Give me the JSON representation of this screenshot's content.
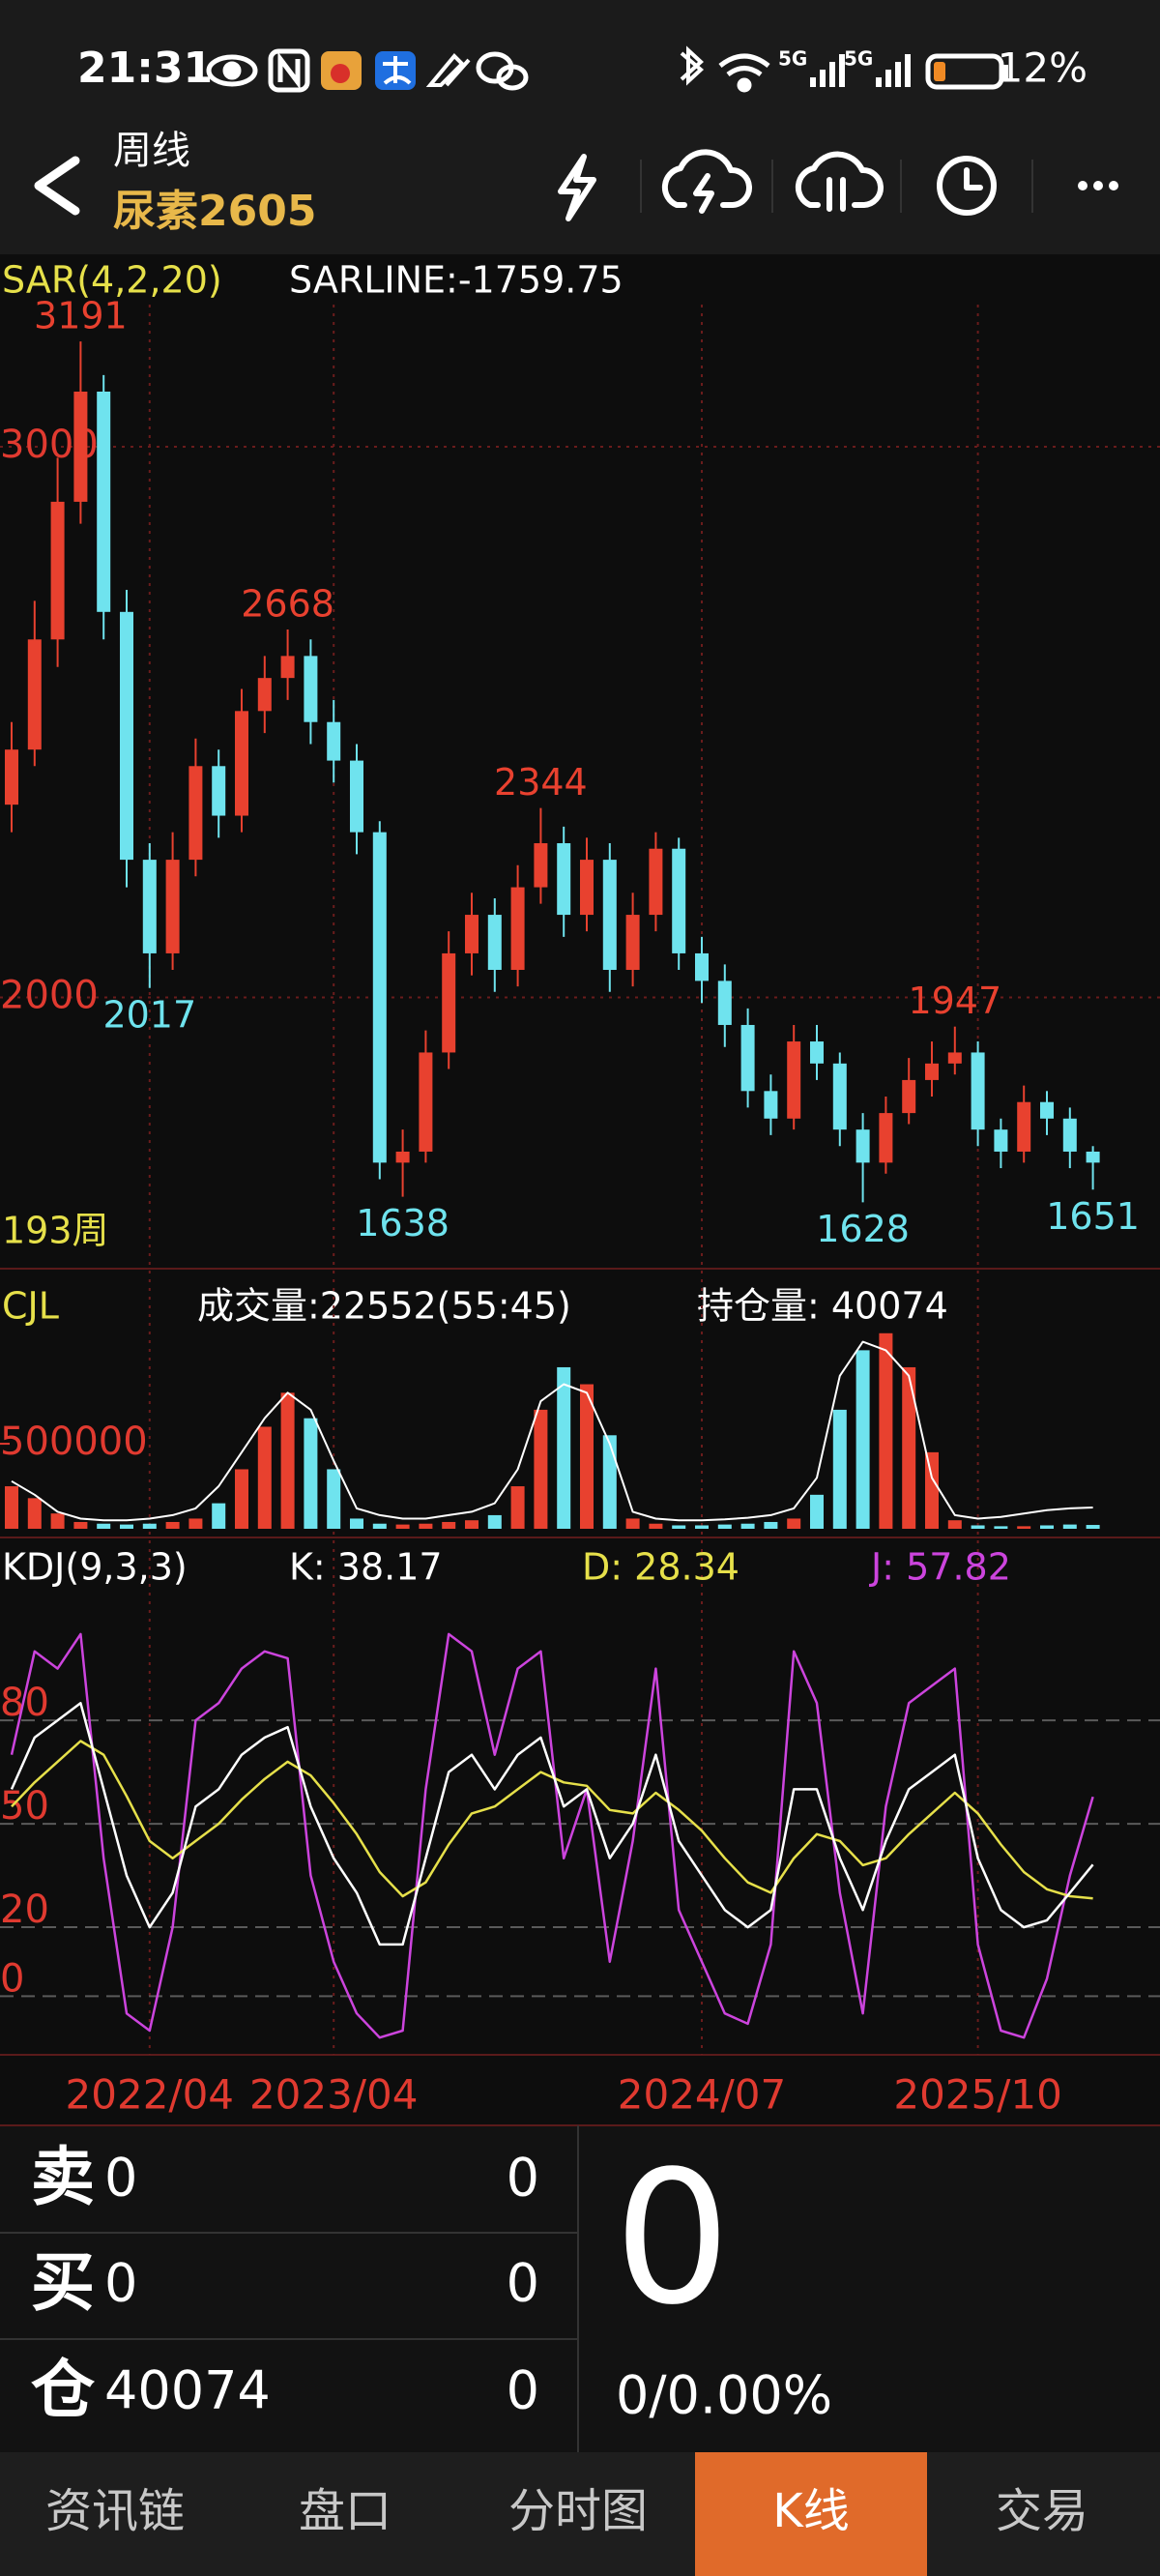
{
  "status_bar": {
    "time": "21:31",
    "network": [
      "5G",
      "5G"
    ],
    "battery": "12%"
  },
  "header": {
    "period": "周线",
    "symbol": "尿素2605"
  },
  "chart_data": [
    {
      "type": "candlestick",
      "title": "SAR(4,2,20)",
      "subtitle": "SARLINE:-1759.75",
      "bar_count_label": "193周",
      "categories": [
        null,
        null,
        null,
        null,
        null,
        null,
        "2022/04",
        null,
        null,
        null,
        null,
        null,
        null,
        null,
        "2023/04",
        null,
        null,
        null,
        null,
        null,
        null,
        null,
        null,
        null,
        null,
        null,
        null,
        null,
        null,
        null,
        "2024/07",
        null,
        null,
        null,
        null,
        null,
        null,
        null,
        null,
        null,
        null,
        null,
        "2025/10",
        null,
        null,
        null,
        null,
        null
      ],
      "open": [
        2350,
        2450,
        2650,
        2900,
        3100,
        2700,
        2250,
        2080,
        2250,
        2420,
        2330,
        2520,
        2580,
        2620,
        2500,
        2430,
        2300,
        1700,
        1720,
        1900,
        2080,
        2150,
        2050,
        2200,
        2280,
        2150,
        2250,
        2050,
        2150,
        2270,
        2080,
        2030,
        1950,
        1830,
        1780,
        1920,
        1880,
        1760,
        1700,
        1790,
        1850,
        1880,
        1900,
        1760,
        1720,
        1810,
        1780,
        1720
      ],
      "high": [
        2500,
        2720,
        2980,
        3191,
        3130,
        2740,
        2280,
        2300,
        2470,
        2450,
        2560,
        2620,
        2668,
        2650,
        2540,
        2460,
        2320,
        1760,
        1940,
        2120,
        2190,
        2180,
        2240,
        2344,
        2310,
        2290,
        2280,
        2190,
        2300,
        2290,
        2110,
        2060,
        1980,
        1860,
        1950,
        1950,
        1900,
        1790,
        1820,
        1890,
        1920,
        1947,
        1920,
        1780,
        1840,
        1830,
        1800,
        1730
      ],
      "low": [
        2300,
        2420,
        2600,
        2860,
        2650,
        2200,
        2017,
        2050,
        2220,
        2290,
        2300,
        2480,
        2540,
        2460,
        2390,
        2260,
        1670,
        1638,
        1700,
        1870,
        2040,
        2010,
        2020,
        2170,
        2110,
        2120,
        2010,
        2020,
        2120,
        2050,
        1990,
        1910,
        1800,
        1750,
        1760,
        1850,
        1730,
        1628,
        1680,
        1770,
        1820,
        1860,
        1730,
        1690,
        1700,
        1750,
        1690,
        1651
      ],
      "close": [
        2450,
        2650,
        2900,
        3100,
        2700,
        2250,
        2080,
        2250,
        2420,
        2330,
        2520,
        2580,
        2620,
        2500,
        2430,
        2300,
        1700,
        1720,
        1900,
        2080,
        2150,
        2050,
        2200,
        2280,
        2150,
        2250,
        2050,
        2150,
        2270,
        2080,
        2030,
        1950,
        1830,
        1780,
        1920,
        1880,
        1760,
        1700,
        1790,
        1850,
        1880,
        1900,
        1760,
        1720,
        1810,
        1780,
        1720,
        1700
      ],
      "up_color": "#e8412f",
      "down_color": "#6fe3ee",
      "annotations": {
        "highs": [
          3191,
          2668,
          2344,
          1947
        ],
        "lows": [
          2017,
          1638,
          1628,
          1651
        ]
      },
      "ylim": [
        1511,
        3258
      ],
      "yticks": [
        2000,
        3000
      ],
      "grid": true
    },
    {
      "type": "bar",
      "title": "CJL",
      "volume_label": "成交量:22552(55:45)",
      "open_interest_label": "持仓量: 40074",
      "values": [
        250000,
        180000,
        90000,
        40000,
        30000,
        25000,
        30000,
        40000,
        60000,
        150000,
        350000,
        600000,
        800000,
        650000,
        350000,
        60000,
        30000,
        25000,
        30000,
        40000,
        50000,
        80000,
        250000,
        700000,
        950000,
        850000,
        550000,
        60000,
        30000,
        20000,
        20000,
        25000,
        30000,
        40000,
        60000,
        200000,
        700000,
        1050000,
        1150000,
        950000,
        450000,
        50000,
        20000,
        15000,
        15000,
        20000,
        25000,
        22552
      ],
      "line_values": [
        280000,
        200000,
        100000,
        60000,
        50000,
        50000,
        60000,
        80000,
        120000,
        250000,
        450000,
        650000,
        800000,
        700000,
        400000,
        120000,
        80000,
        60000,
        60000,
        80000,
        100000,
        150000,
        350000,
        750000,
        850000,
        800000,
        500000,
        100000,
        60000,
        50000,
        50000,
        55000,
        65000,
        80000,
        120000,
        300000,
        900000,
        1100000,
        1050000,
        900000,
        300000,
        80000,
        60000,
        70000,
        90000,
        110000,
        120000,
        125000
      ],
      "line_color": "#ffffff",
      "ylim": [
        0,
        1200000
      ],
      "yticks": [
        500000
      ]
    },
    {
      "type": "line",
      "title": "KDJ(9,3,3)",
      "series": [
        {
          "name": "K: 38.17",
          "color": "#ffffff",
          "values": [
            60,
            75,
            80,
            85,
            60,
            35,
            20,
            30,
            55,
            60,
            70,
            75,
            78,
            55,
            40,
            30,
            15,
            15,
            40,
            65,
            70,
            60,
            70,
            75,
            55,
            60,
            40,
            50,
            70,
            45,
            35,
            25,
            20,
            25,
            60,
            60,
            40,
            25,
            45,
            60,
            65,
            70,
            40,
            25,
            20,
            22,
            30,
            38.17
          ]
        },
        {
          "name": "D: 28.34",
          "color": "#e6e04a",
          "values": [
            55,
            62,
            68,
            74,
            70,
            58,
            45,
            40,
            45,
            50,
            57,
            63,
            68,
            64,
            56,
            47,
            36,
            29,
            33,
            44,
            53,
            55,
            60,
            65,
            62,
            61,
            54,
            53,
            59,
            54,
            48,
            40,
            33,
            30,
            40,
            47,
            45,
            38,
            40,
            47,
            53,
            59,
            53,
            44,
            36,
            31,
            29,
            28.34
          ]
        },
        {
          "name": "J: 57.82",
          "color": "#cc44dd",
          "values": [
            70,
            100,
            95,
            105,
            40,
            -5,
            -10,
            20,
            80,
            85,
            95,
            100,
            98,
            35,
            10,
            -5,
            -12,
            -10,
            60,
            105,
            100,
            70,
            95,
            100,
            40,
            60,
            10,
            45,
            95,
            25,
            10,
            -5,
            -8,
            15,
            100,
            85,
            30,
            -5,
            55,
            85,
            90,
            95,
            15,
            -10,
            -12,
            5,
            35,
            57.82
          ]
        }
      ],
      "ylim": [
        -17,
        119
      ],
      "yticks": [
        0,
        20,
        50,
        80
      ],
      "grid": true
    }
  ],
  "order_panel": {
    "rows": [
      {
        "label": "卖",
        "value": 0,
        "right": 0
      },
      {
        "label": "买",
        "value": 0,
        "right": 0
      },
      {
        "label": "仓",
        "value": 40074,
        "right": 0
      }
    ],
    "price": 0,
    "change": "0/0.00%"
  },
  "tabs": [
    "资讯链",
    "盘口",
    "分时图",
    "K线",
    "交易"
  ],
  "active_tab": "K线"
}
